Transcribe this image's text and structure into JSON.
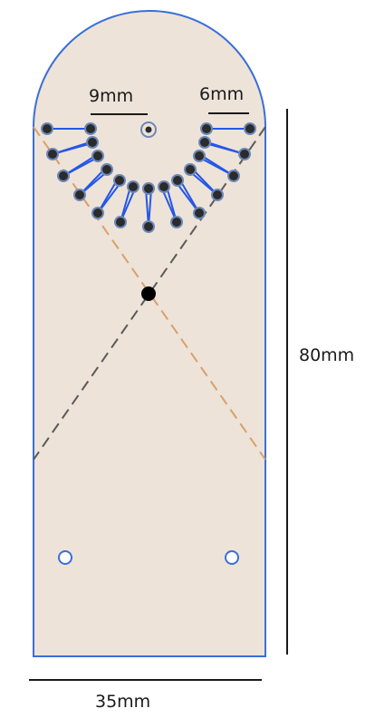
{
  "labels": {
    "spacing_inner": "9mm",
    "spacing_outer": "6mm",
    "height": "80mm",
    "width": "35mm"
  },
  "colors": {
    "plate_fill": "#ede3d8",
    "plate_outline": "#3a6fd8",
    "spoke_blue": "#2457e6",
    "dashed_orange": "#d9a06c",
    "dashed_gray": "#5a5a5a",
    "peg_fill": "#2b2b2b",
    "peg_ring": "#6d87b8",
    "dimension_line": "#1a1a1a"
  }
}
